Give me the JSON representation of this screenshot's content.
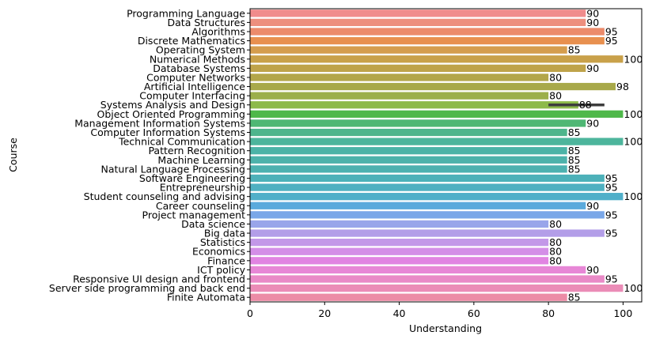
{
  "chart_data": {
    "type": "bar",
    "orientation": "horizontal",
    "xlabel": "Understanding",
    "ylabel": "Course",
    "xlim": [
      0,
      105
    ],
    "xticks": [
      0,
      20,
      40,
      60,
      80,
      100
    ],
    "grid": false,
    "legend": "none",
    "categories": [
      "Programming Language",
      "Data Structures",
      "Algorithms",
      "Discrete Mathematics",
      "Operating System",
      "Numerical Methods",
      "Database Systems",
      "Computer Networks",
      "Artificial Intelligence",
      "Computer Interfacing",
      "Systems Analysis and Design",
      "Object Oriented Programming",
      "Management Information Systems",
      "Computer Information Systems",
      "Technical Communication",
      "Pattern Recognition",
      "Machine Learning",
      "Natural Language Processing",
      "Software Engineering",
      "Entrepreneurship",
      "Student counseling and advising",
      "Career counseling",
      "Project management",
      "Data science",
      "Big data",
      "Statistics",
      "Economics",
      "Finance",
      "ICT policy",
      "Responsive UI design and frontend",
      "Server side programming and back end",
      "Finite Automata"
    ],
    "values": [
      90,
      90,
      95,
      95,
      85,
      100,
      90,
      80,
      98,
      80,
      88,
      100,
      90,
      85,
      100,
      85,
      85,
      85,
      95,
      95,
      100,
      90,
      95,
      80,
      95,
      80,
      80,
      80,
      90,
      95,
      100,
      85
    ],
    "data_labels": [
      "90",
      "90",
      "95",
      "95",
      "85",
      "100",
      "90",
      "80",
      "98",
      "80",
      "88",
      "100",
      "90",
      "85",
      "100",
      "85",
      "85",
      "85",
      "95",
      "95",
      "100",
      "90",
      "95",
      "80",
      "95",
      "80",
      "80",
      "80",
      "90",
      "95",
      "100",
      "85"
    ],
    "error_bars": [
      {
        "category": "Systems Analysis and Design",
        "low": 80,
        "high": 95
      }
    ],
    "colors": [
      "#f08c8c",
      "#ed8f7e",
      "#ec8b6b",
      "#e8904f",
      "#d59d4e",
      "#c9a14a",
      "#bfa34a",
      "#b3a649",
      "#a8a94a",
      "#9caf4a",
      "#8dba4a",
      "#4fb84a",
      "#4fb774",
      "#4eb58c",
      "#4db59c",
      "#4cb3a7",
      "#4db2ab",
      "#4db1b0",
      "#4db1b9",
      "#4fb0c1",
      "#50afc9",
      "#5aaadc",
      "#7aa7e8",
      "#99a5ea",
      "#b39ee8",
      "#c398e8",
      "#d48ee7",
      "#e184e2",
      "#e787d6",
      "#e98ac7",
      "#eb8cb7",
      "#ec8ca6"
    ]
  }
}
